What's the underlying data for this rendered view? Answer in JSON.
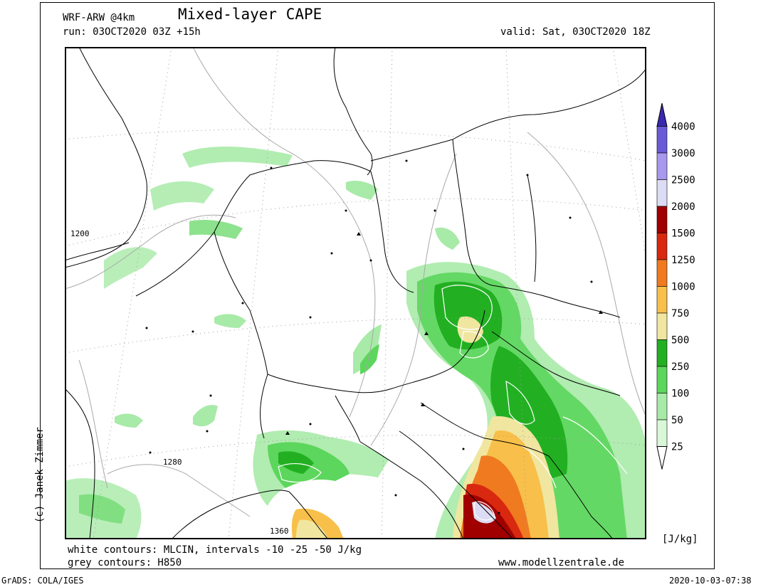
{
  "header": {
    "model": "WRF-ARW @4km",
    "title": "Mixed-layer CAPE",
    "run": "run: 03OCT2020 03Z +15h",
    "valid": "valid: Sat, 03OCT2020 18Z"
  },
  "footer": {
    "white_contours": "white contours: MLCIN, intervals -10 -25 -50 J/kg",
    "grey_contours": "grey contours: H850",
    "website": "www.modellzentrale.de",
    "credit": "(c) Janek Zimmer",
    "grads": "GrADS: COLA/IGES",
    "timestamp": "2020-10-03-07:38"
  },
  "colorbar": {
    "unit": "[J/kg]",
    "levels": [
      "25",
      "50",
      "100",
      "250",
      "500",
      "750",
      "1000",
      "1250",
      "1500",
      "2000",
      "2500",
      "3000",
      "4000"
    ],
    "colors": [
      "#d8f8d8",
      "#a8eaa8",
      "#5cd65c",
      "#22b022",
      "#f0e6a0",
      "#f8c04a",
      "#f07a20",
      "#d82810",
      "#a00000",
      "#dcdcf4",
      "#a898ee",
      "#6a5ad8",
      "#3a2ab0"
    ],
    "low_color": "#ffffff"
  },
  "map": {
    "contour_labels": [
      "1200",
      "1280",
      "1360"
    ]
  }
}
